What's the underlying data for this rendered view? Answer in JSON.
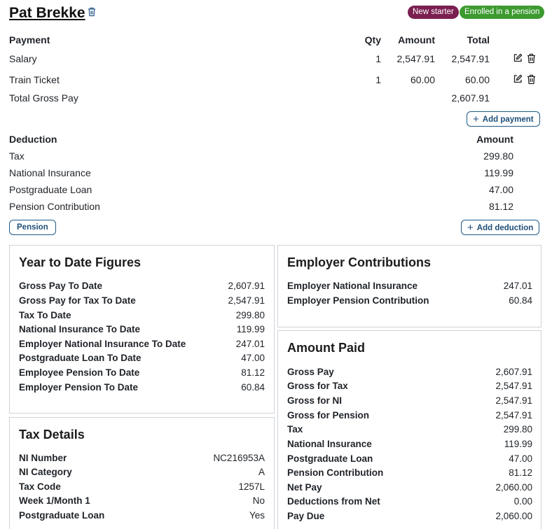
{
  "employee": {
    "name": "Pat Brekke",
    "badges": {
      "new_starter": "New starter",
      "pension": "Enrolled in a pension"
    }
  },
  "payments": {
    "headers": {
      "payment": "Payment",
      "qty": "Qty",
      "amount": "Amount",
      "total": "Total"
    },
    "rows": [
      {
        "label": "Salary",
        "qty": "1",
        "amount": "2,547.91",
        "total": "2,547.91"
      },
      {
        "label": "Train Ticket",
        "qty": "1",
        "amount": "60.00",
        "total": "60.00"
      }
    ],
    "total_label": "Total Gross Pay",
    "total_value": "2,607.91",
    "add_button": "Add payment"
  },
  "deductions": {
    "headers": {
      "deduction": "Deduction",
      "amount": "Amount"
    },
    "rows": [
      {
        "label": "Tax",
        "amount": "299.80"
      },
      {
        "label": "National Insurance",
        "amount": "119.99"
      },
      {
        "label": "Postgraduate Loan",
        "amount": "47.00"
      },
      {
        "label": "Pension Contribution",
        "amount": "81.12"
      }
    ],
    "pension_button": "Pension",
    "add_button": "Add deduction"
  },
  "ytd": {
    "title": "Year to Date Figures",
    "rows": [
      {
        "label": "Gross Pay To Date",
        "value": "2,607.91"
      },
      {
        "label": "Gross Pay for Tax To Date",
        "value": "2,547.91"
      },
      {
        "label": "Tax To Date",
        "value": "299.80"
      },
      {
        "label": "National Insurance To Date",
        "value": "119.99"
      },
      {
        "label": "Employer National Insurance To Date",
        "value": "247.01"
      },
      {
        "label": "Postgraduate Loan To Date",
        "value": "47.00"
      },
      {
        "label": "Employee Pension To Date",
        "value": "81.12"
      },
      {
        "label": "Employer Pension To Date",
        "value": "60.84"
      }
    ]
  },
  "employer": {
    "title": "Employer Contributions",
    "rows": [
      {
        "label": "Employer National Insurance",
        "value": "247.01"
      },
      {
        "label": "Employer Pension Contribution",
        "value": "60.84"
      }
    ]
  },
  "tax_details": {
    "title": "Tax Details",
    "rows": [
      {
        "label": "NI Number",
        "value": "NC216953A"
      },
      {
        "label": "NI Category",
        "value": "A"
      },
      {
        "label": "Tax Code",
        "value": "1257L"
      },
      {
        "label": "Week 1/Month 1",
        "value": "No"
      },
      {
        "label": "Postgraduate Loan",
        "value": "Yes"
      }
    ]
  },
  "amount_paid": {
    "title": "Amount Paid",
    "rows": [
      {
        "label": "Gross Pay",
        "value": "2,607.91"
      },
      {
        "label": "Gross for Tax",
        "value": "2,547.91"
      },
      {
        "label": "Gross for NI",
        "value": "2,547.91"
      },
      {
        "label": "Gross for Pension",
        "value": "2,547.91"
      },
      {
        "label": "Tax",
        "value": "299.80"
      },
      {
        "label": "National Insurance",
        "value": "119.99"
      },
      {
        "label": "Postgraduate Loan",
        "value": "47.00"
      },
      {
        "label": "Pension Contribution",
        "value": "81.12"
      },
      {
        "label": "Net Pay",
        "value": "2,060.00"
      },
      {
        "label": "Deductions from Net",
        "value": "0.00"
      },
      {
        "label": "Pay Due",
        "value": "2,060.00"
      }
    ]
  },
  "colors": {
    "accent": "#1e5a87",
    "new_starter": "#7a1f4f",
    "pension": "#3c9a2f",
    "border": "#cfd3d8"
  },
  "icons": {
    "delete": "trash-icon",
    "edit": "edit-icon",
    "add": "plus-icon"
  }
}
